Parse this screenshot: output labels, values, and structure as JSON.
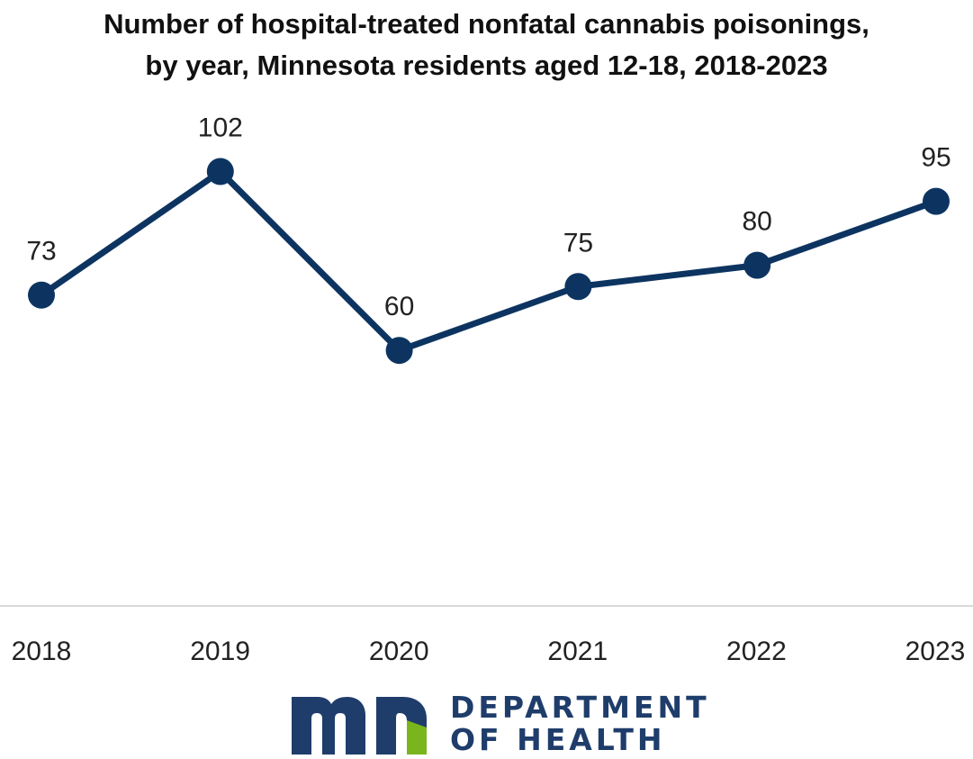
{
  "chart_data": {
    "type": "line",
    "title_line1": "Number of hospital-treated nonfatal cannabis poisonings,",
    "title_line2": "by year, Minnesota residents aged 12-18, 2018-2023",
    "categories": [
      "2018",
      "2019",
      "2020",
      "2021",
      "2022",
      "2023"
    ],
    "series": [
      {
        "values": [
          73,
          102,
          60,
          75,
          80,
          95
        ]
      }
    ],
    "data_labels": [
      "73",
      "102",
      "60",
      "75",
      "80",
      "95"
    ],
    "ylim": [
      0,
      130
    ],
    "grid": false,
    "legend": "none",
    "xlabel": "",
    "ylabel": ""
  },
  "colors": {
    "line": "#0d3461",
    "axis": "#d9d9d9",
    "label": "#222222",
    "logo_blue": "#1f3d6b",
    "logo_green": "#7ab51d"
  },
  "logo": {
    "line1": "DEPARTMENT",
    "line2": "OF HEALTH",
    "icon": "mn-logo-icon"
  }
}
